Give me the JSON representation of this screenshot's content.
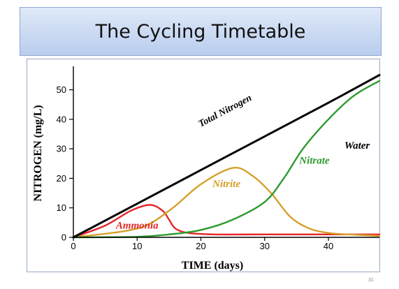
{
  "slide": {
    "title": "The Cycling Timetable",
    "page_number": "31"
  },
  "chart_data": {
    "type": "line",
    "title": "",
    "xlabel": "TIME (days)",
    "ylabel": "NITROGEN (mg/L)",
    "xlim": [
      0,
      48
    ],
    "ylim": [
      0,
      57
    ],
    "x_ticks": [
      0,
      10,
      20,
      30,
      40
    ],
    "y_ticks": [
      0,
      10,
      20,
      30,
      40,
      50
    ],
    "grid": false,
    "annotations": [
      {
        "text": "Water",
        "x": 44.5,
        "y": 30
      }
    ],
    "series": [
      {
        "name": "Total Nitrogen",
        "color": "#000000",
        "points": [
          [
            0,
            0
          ],
          [
            10,
            11.4
          ],
          [
            20,
            22.8
          ],
          [
            30,
            34.2
          ],
          [
            40,
            45.6
          ],
          [
            48,
            55
          ]
        ]
      },
      {
        "name": "Nitrate",
        "color": "#2e9a2e",
        "points": [
          [
            0,
            0
          ],
          [
            10,
            0.2
          ],
          [
            15,
            1
          ],
          [
            20,
            2.5
          ],
          [
            25,
            6
          ],
          [
            30,
            12
          ],
          [
            33,
            20
          ],
          [
            36,
            30
          ],
          [
            40,
            40
          ],
          [
            44,
            48
          ],
          [
            48,
            53
          ]
        ]
      },
      {
        "name": "Nitrite",
        "color": "#d4a02a",
        "points": [
          [
            0,
            0
          ],
          [
            10,
            3
          ],
          [
            15,
            9
          ],
          [
            20,
            18
          ],
          [
            25,
            23.5
          ],
          [
            28,
            21
          ],
          [
            31,
            15
          ],
          [
            34,
            7
          ],
          [
            37,
            3
          ],
          [
            40,
            1.5
          ],
          [
            43,
            1
          ],
          [
            48,
            0.5
          ]
        ]
      },
      {
        "name": "Ammonia",
        "color": "#e3262a",
        "points": [
          [
            0,
            0
          ],
          [
            5,
            4
          ],
          [
            9,
            9
          ],
          [
            12,
            11
          ],
          [
            14,
            9
          ],
          [
            15,
            6
          ],
          [
            16,
            3
          ],
          [
            18,
            1.5
          ],
          [
            22,
            1
          ],
          [
            30,
            1
          ],
          [
            40,
            1
          ],
          [
            48,
            1
          ]
        ]
      }
    ],
    "labels": [
      {
        "text": "Total Nitrogen",
        "series": 0,
        "x": 24,
        "y": 42,
        "angle": -28
      },
      {
        "text": "Nitrate",
        "series": 1,
        "x": 37.8,
        "y": 25,
        "angle": 0
      },
      {
        "text": "Nitrite",
        "series": 2,
        "x": 24,
        "y": 17,
        "angle": 0
      },
      {
        "text": "Ammonia",
        "series": 3,
        "x": 10,
        "y": 3,
        "angle": 0
      }
    ]
  }
}
